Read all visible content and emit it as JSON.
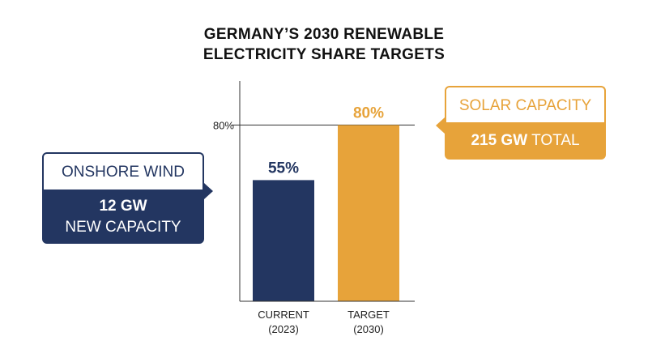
{
  "title": {
    "line1": "GERMANY’S 2030 RENEWABLE",
    "line2": "ELECTRICITY SHARE TARGETS"
  },
  "chart_data": {
    "type": "bar",
    "title": "GERMANY’S 2030 RENEWABLE ELECTRICITY SHARE TARGETS",
    "categories": [
      {
        "line1": "CURRENT",
        "line2": "(2023)"
      },
      {
        "line1": "TARGET",
        "line2": "(2030)"
      }
    ],
    "values": [
      55,
      80
    ],
    "value_labels": [
      "55%",
      "80%"
    ],
    "bar_colors": [
      "#233661",
      "#e7a33a"
    ],
    "label_colors": [
      "#233661",
      "#e7a33a"
    ],
    "ylim": [
      0,
      100
    ],
    "yticks": [
      {
        "value": 80,
        "label": "80%"
      }
    ],
    "grid": false,
    "xlabel": "",
    "ylabel": ""
  },
  "callouts": {
    "wind": {
      "heading": "ONSHORE WIND",
      "value": "12 GW",
      "detail": "NEW CAPACITY",
      "color": "#233661"
    },
    "solar": {
      "heading": "SOLAR CAPACITY",
      "value": "215 GW",
      "detail": "TOTAL",
      "color": "#e7a33a"
    }
  }
}
